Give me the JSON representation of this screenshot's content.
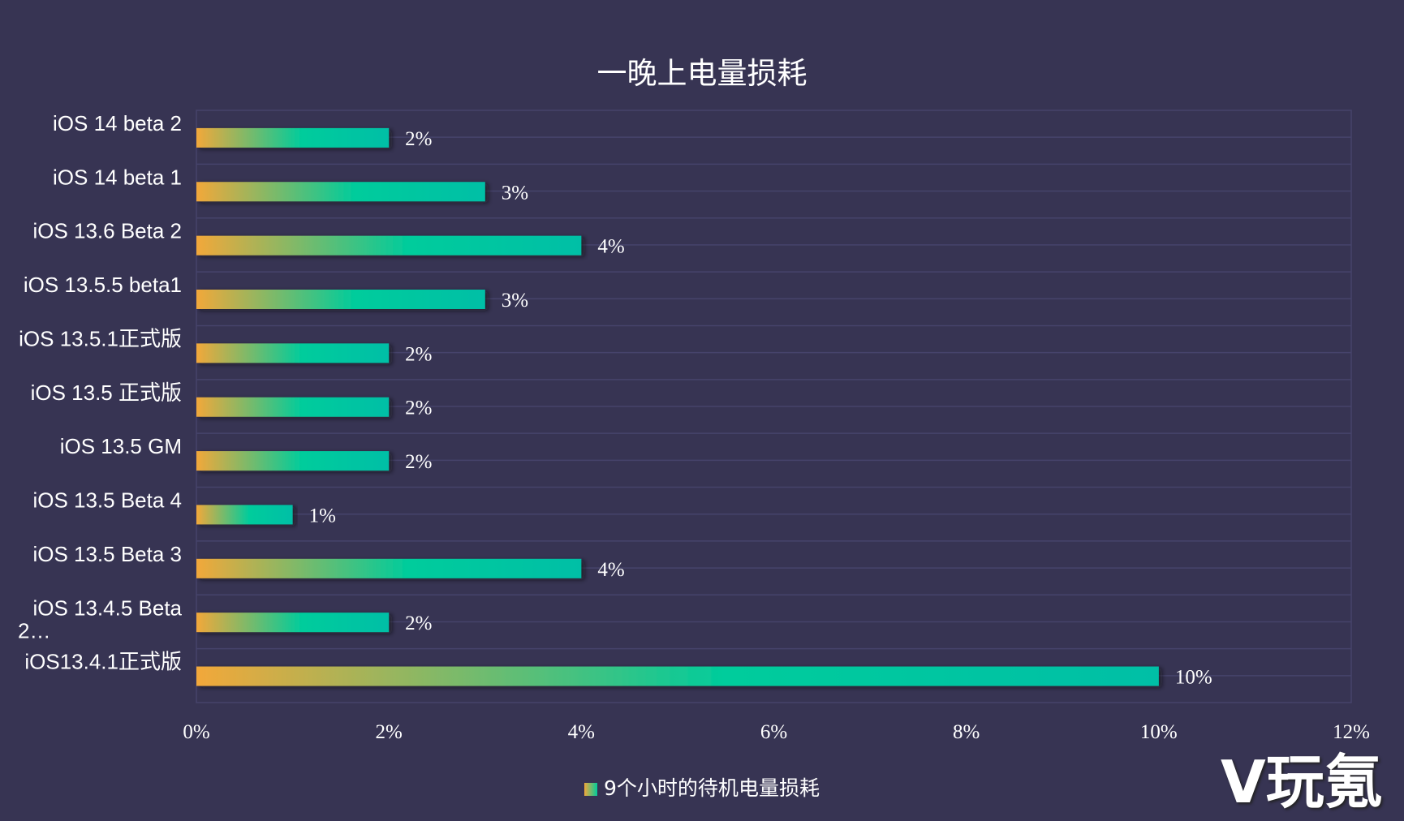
{
  "chart_data": {
    "type": "bar",
    "orientation": "horizontal",
    "title": "一晚上电量损耗",
    "categories": [
      "iOS 14 beta 2",
      "iOS 14 beta 1",
      "iOS 13.6 Beta 2",
      "iOS 13.5.5 beta1",
      "iOS 13.5.1正式版",
      "iOS 13.5 正式版",
      "iOS 13.5  GM",
      "iOS 13.5 Beta 4",
      "iOS 13.5 Beta 3",
      "iOS 13.4.5 Beta 2…",
      "iOS13.4.1正式版"
    ],
    "series": [
      {
        "name": "9个小时的待机电量损耗",
        "values": [
          2,
          3,
          4,
          3,
          2,
          2,
          2,
          1,
          4,
          2,
          10
        ]
      }
    ],
    "data_labels": [
      "2%",
      "3%",
      "4%",
      "3%",
      "2%",
      "2%",
      "2%",
      "1%",
      "4%",
      "2%",
      "10%"
    ],
    "xlim": [
      0,
      12
    ],
    "x_ticks": [
      "0%",
      "2%",
      "4%",
      "6%",
      "8%",
      "10%",
      "12%"
    ],
    "grid": true,
    "legend": "bottom",
    "colors": {
      "gradient_start": "#f2a83a",
      "gradient_mid": "#00cc9c",
      "gradient_end": "#00bfa6",
      "background": "#373453",
      "grid": "#46436b"
    }
  },
  "watermark": "V玩氪"
}
